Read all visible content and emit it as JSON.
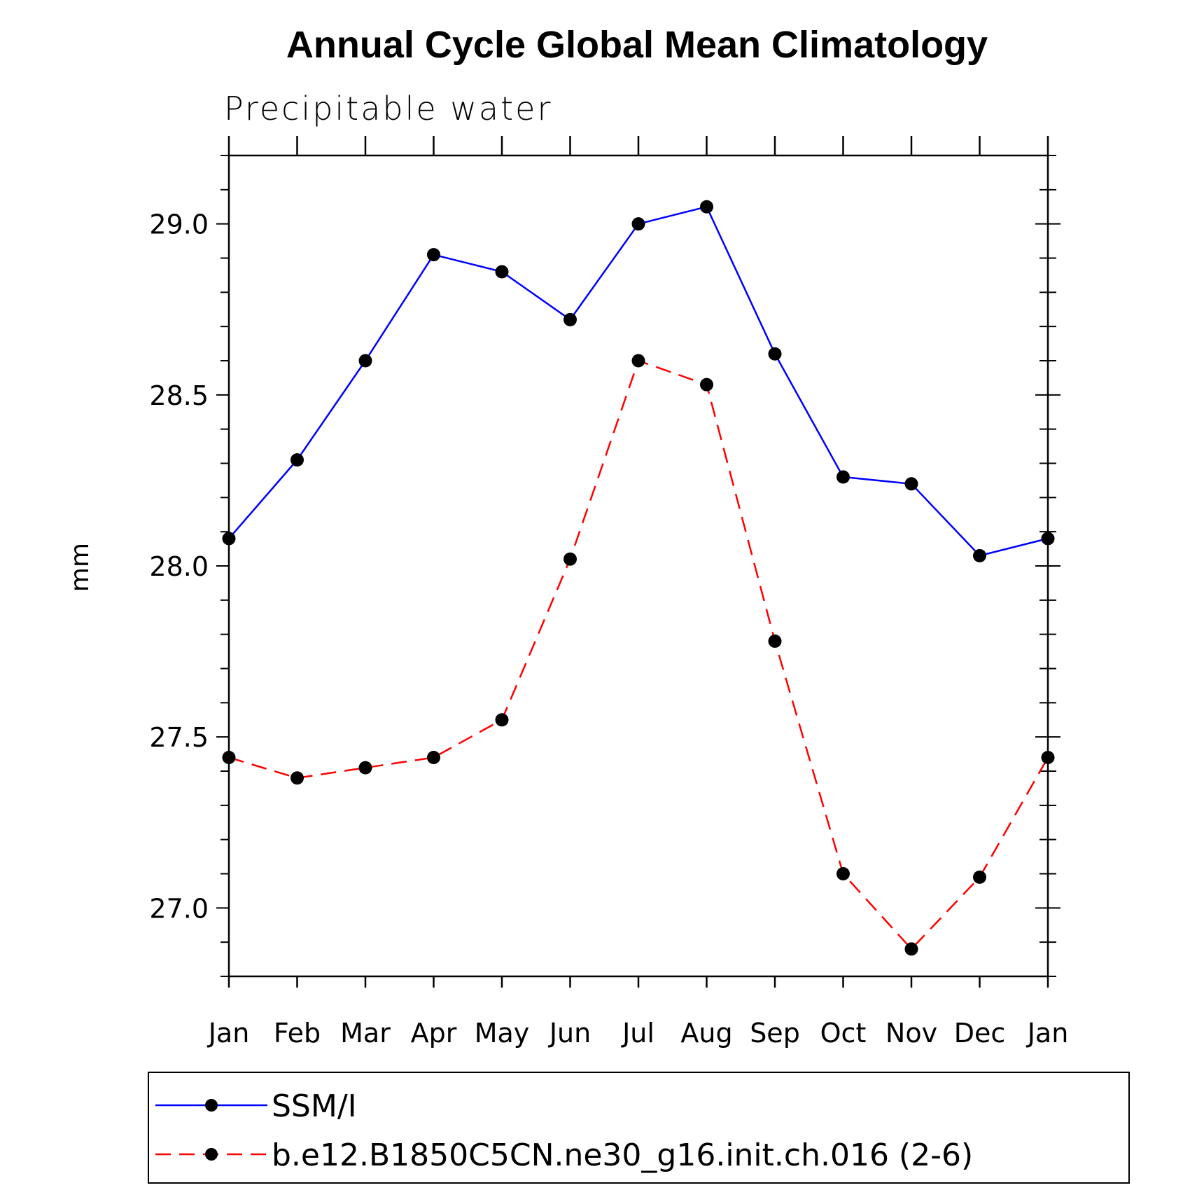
{
  "chart_data": {
    "type": "line",
    "title": "Annual Cycle Global Mean Climatology",
    "subtitle": "Precipitable water",
    "xlabel": "",
    "ylabel": "mm",
    "categories": [
      "Jan",
      "Feb",
      "Mar",
      "Apr",
      "May",
      "Jun",
      "Jul",
      "Aug",
      "Sep",
      "Oct",
      "Nov",
      "Dec",
      "Jan"
    ],
    "ylim": [
      26.8,
      29.2
    ],
    "yticks": [
      "27.0",
      "27.5",
      "28.0",
      "28.5",
      "29.0"
    ],
    "grid": false,
    "legend_position": "bottom",
    "series": [
      {
        "name": "SSM/I",
        "color": "#0000ff",
        "style": "solid",
        "values": [
          28.08,
          28.31,
          28.6,
          28.91,
          28.86,
          28.72,
          29.0,
          29.05,
          28.62,
          28.26,
          28.24,
          28.03,
          28.08
        ]
      },
      {
        "name": "b.e12.B1850C5CN.ne30_g16.init.ch.016 (2-6)",
        "color": "#ff0000",
        "style": "dashed",
        "values": [
          27.44,
          27.38,
          27.41,
          27.44,
          27.55,
          28.02,
          28.6,
          28.53,
          27.78,
          27.1,
          26.88,
          27.09,
          27.44
        ]
      }
    ]
  }
}
